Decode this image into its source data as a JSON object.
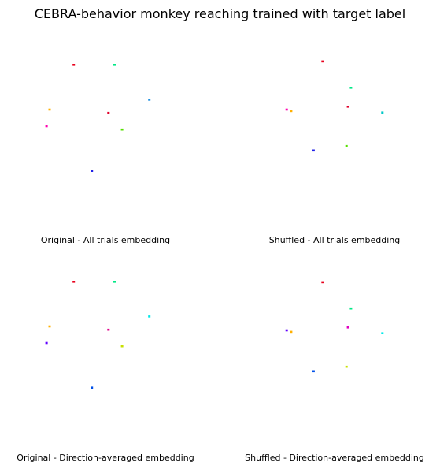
{
  "title": "CEBRA-behavior monkey reaching trained with target label",
  "chart_data": [
    {
      "type": "scatter",
      "title": "Original - All trials embedding",
      "xlim": [
        0,
        1
      ],
      "ylim": [
        0,
        1
      ],
      "grid": false,
      "axes_visible": false,
      "points": [
        {
          "x": 0.29,
          "y": 0.87,
          "color": "#e8001c"
        },
        {
          "x": 0.56,
          "y": 0.87,
          "color": "#00e886"
        },
        {
          "x": 0.79,
          "y": 0.66,
          "color": "#1e90e0"
        },
        {
          "x": 0.13,
          "y": 0.6,
          "color": "#ffb000"
        },
        {
          "x": 0.52,
          "y": 0.58,
          "color": "#e0002a"
        },
        {
          "x": 0.11,
          "y": 0.5,
          "color": "#ff00b0"
        },
        {
          "x": 0.61,
          "y": 0.48,
          "color": "#55e000"
        },
        {
          "x": 0.41,
          "y": 0.23,
          "color": "#2020e8"
        }
      ]
    },
    {
      "type": "scatter",
      "title": "Shuffled - All trials embedding",
      "xlim": [
        0,
        1
      ],
      "ylim": [
        0,
        1
      ],
      "grid": false,
      "axes_visible": false,
      "points": [
        {
          "x": 0.42,
          "y": 0.93,
          "color": "#e8001c"
        },
        {
          "x": 0.61,
          "y": 0.75,
          "color": "#00e886"
        },
        {
          "x": 0.59,
          "y": 0.62,
          "color": "#e0002a"
        },
        {
          "x": 0.18,
          "y": 0.6,
          "color": "#ff00b0"
        },
        {
          "x": 0.21,
          "y": 0.59,
          "color": "#ffb000"
        },
        {
          "x": 0.82,
          "y": 0.58,
          "color": "#00c8c8"
        },
        {
          "x": 0.58,
          "y": 0.35,
          "color": "#55e000"
        },
        {
          "x": 0.36,
          "y": 0.32,
          "color": "#2020e8"
        }
      ]
    },
    {
      "type": "scatter",
      "title": "Original - Direction-averaged embedding",
      "xlim": [
        0,
        1
      ],
      "ylim": [
        0,
        1
      ],
      "grid": false,
      "axes_visible": false,
      "points": [
        {
          "x": 0.29,
          "y": 0.87,
          "color": "#e8001c"
        },
        {
          "x": 0.56,
          "y": 0.87,
          "color": "#00e886"
        },
        {
          "x": 0.79,
          "y": 0.66,
          "color": "#00e8e8"
        },
        {
          "x": 0.13,
          "y": 0.6,
          "color": "#ffb000"
        },
        {
          "x": 0.52,
          "y": 0.58,
          "color": "#e0008a"
        },
        {
          "x": 0.11,
          "y": 0.5,
          "color": "#6000ff"
        },
        {
          "x": 0.61,
          "y": 0.48,
          "color": "#c8e000"
        },
        {
          "x": 0.41,
          "y": 0.23,
          "color": "#0050e8"
        }
      ]
    },
    {
      "type": "scatter",
      "title": "Shuffled - Direction-averaged embedding",
      "xlim": [
        0,
        1
      ],
      "ylim": [
        0,
        1
      ],
      "grid": false,
      "axes_visible": false,
      "points": [
        {
          "x": 0.42,
          "y": 0.93,
          "color": "#e8001c"
        },
        {
          "x": 0.61,
          "y": 0.75,
          "color": "#00e886"
        },
        {
          "x": 0.59,
          "y": 0.62,
          "color": "#e000c0"
        },
        {
          "x": 0.18,
          "y": 0.6,
          "color": "#6000ff"
        },
        {
          "x": 0.21,
          "y": 0.59,
          "color": "#ffb000"
        },
        {
          "x": 0.82,
          "y": 0.58,
          "color": "#00e8e8"
        },
        {
          "x": 0.58,
          "y": 0.35,
          "color": "#c8e000"
        },
        {
          "x": 0.36,
          "y": 0.32,
          "color": "#0050e8"
        }
      ]
    }
  ]
}
